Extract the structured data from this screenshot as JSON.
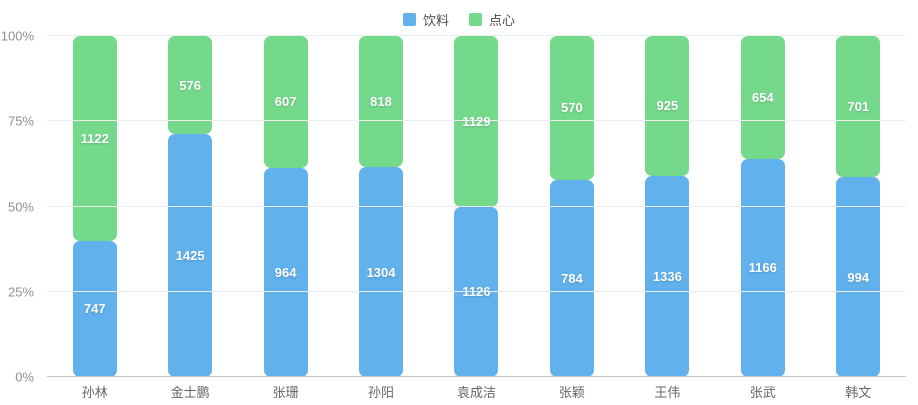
{
  "chart_data": {
    "type": "bar",
    "variant": "stacked-percentage",
    "title": "",
    "categories": [
      "孙林",
      "金士鹏",
      "张珊",
      "孙阳",
      "袁成洁",
      "张颖",
      "王伟",
      "张武",
      "韩文"
    ],
    "series": [
      {
        "name": "饮料",
        "color": "#61B1ED",
        "values": [
          747,
          1425,
          964,
          1304,
          1126,
          784,
          1336,
          1166,
          994
        ]
      },
      {
        "name": "点心",
        "color": "#75D98C",
        "values": [
          1122,
          576,
          607,
          818,
          1129,
          570,
          925,
          654,
          701
        ]
      }
    ],
    "y_axis": {
      "ticks": [
        "0%",
        "25%",
        "50%",
        "75%",
        "100%"
      ],
      "min": 0,
      "max": 100,
      "unit": "%"
    },
    "x_axis": {
      "label": ""
    },
    "legend": {
      "position": "top-center",
      "items": [
        "饮料",
        "点心"
      ]
    },
    "grid": true,
    "colors": {
      "background": "#ffffff",
      "gridline": "#ececec",
      "axis_line": "#c9c9c9",
      "value_label": "#ffffff"
    }
  }
}
